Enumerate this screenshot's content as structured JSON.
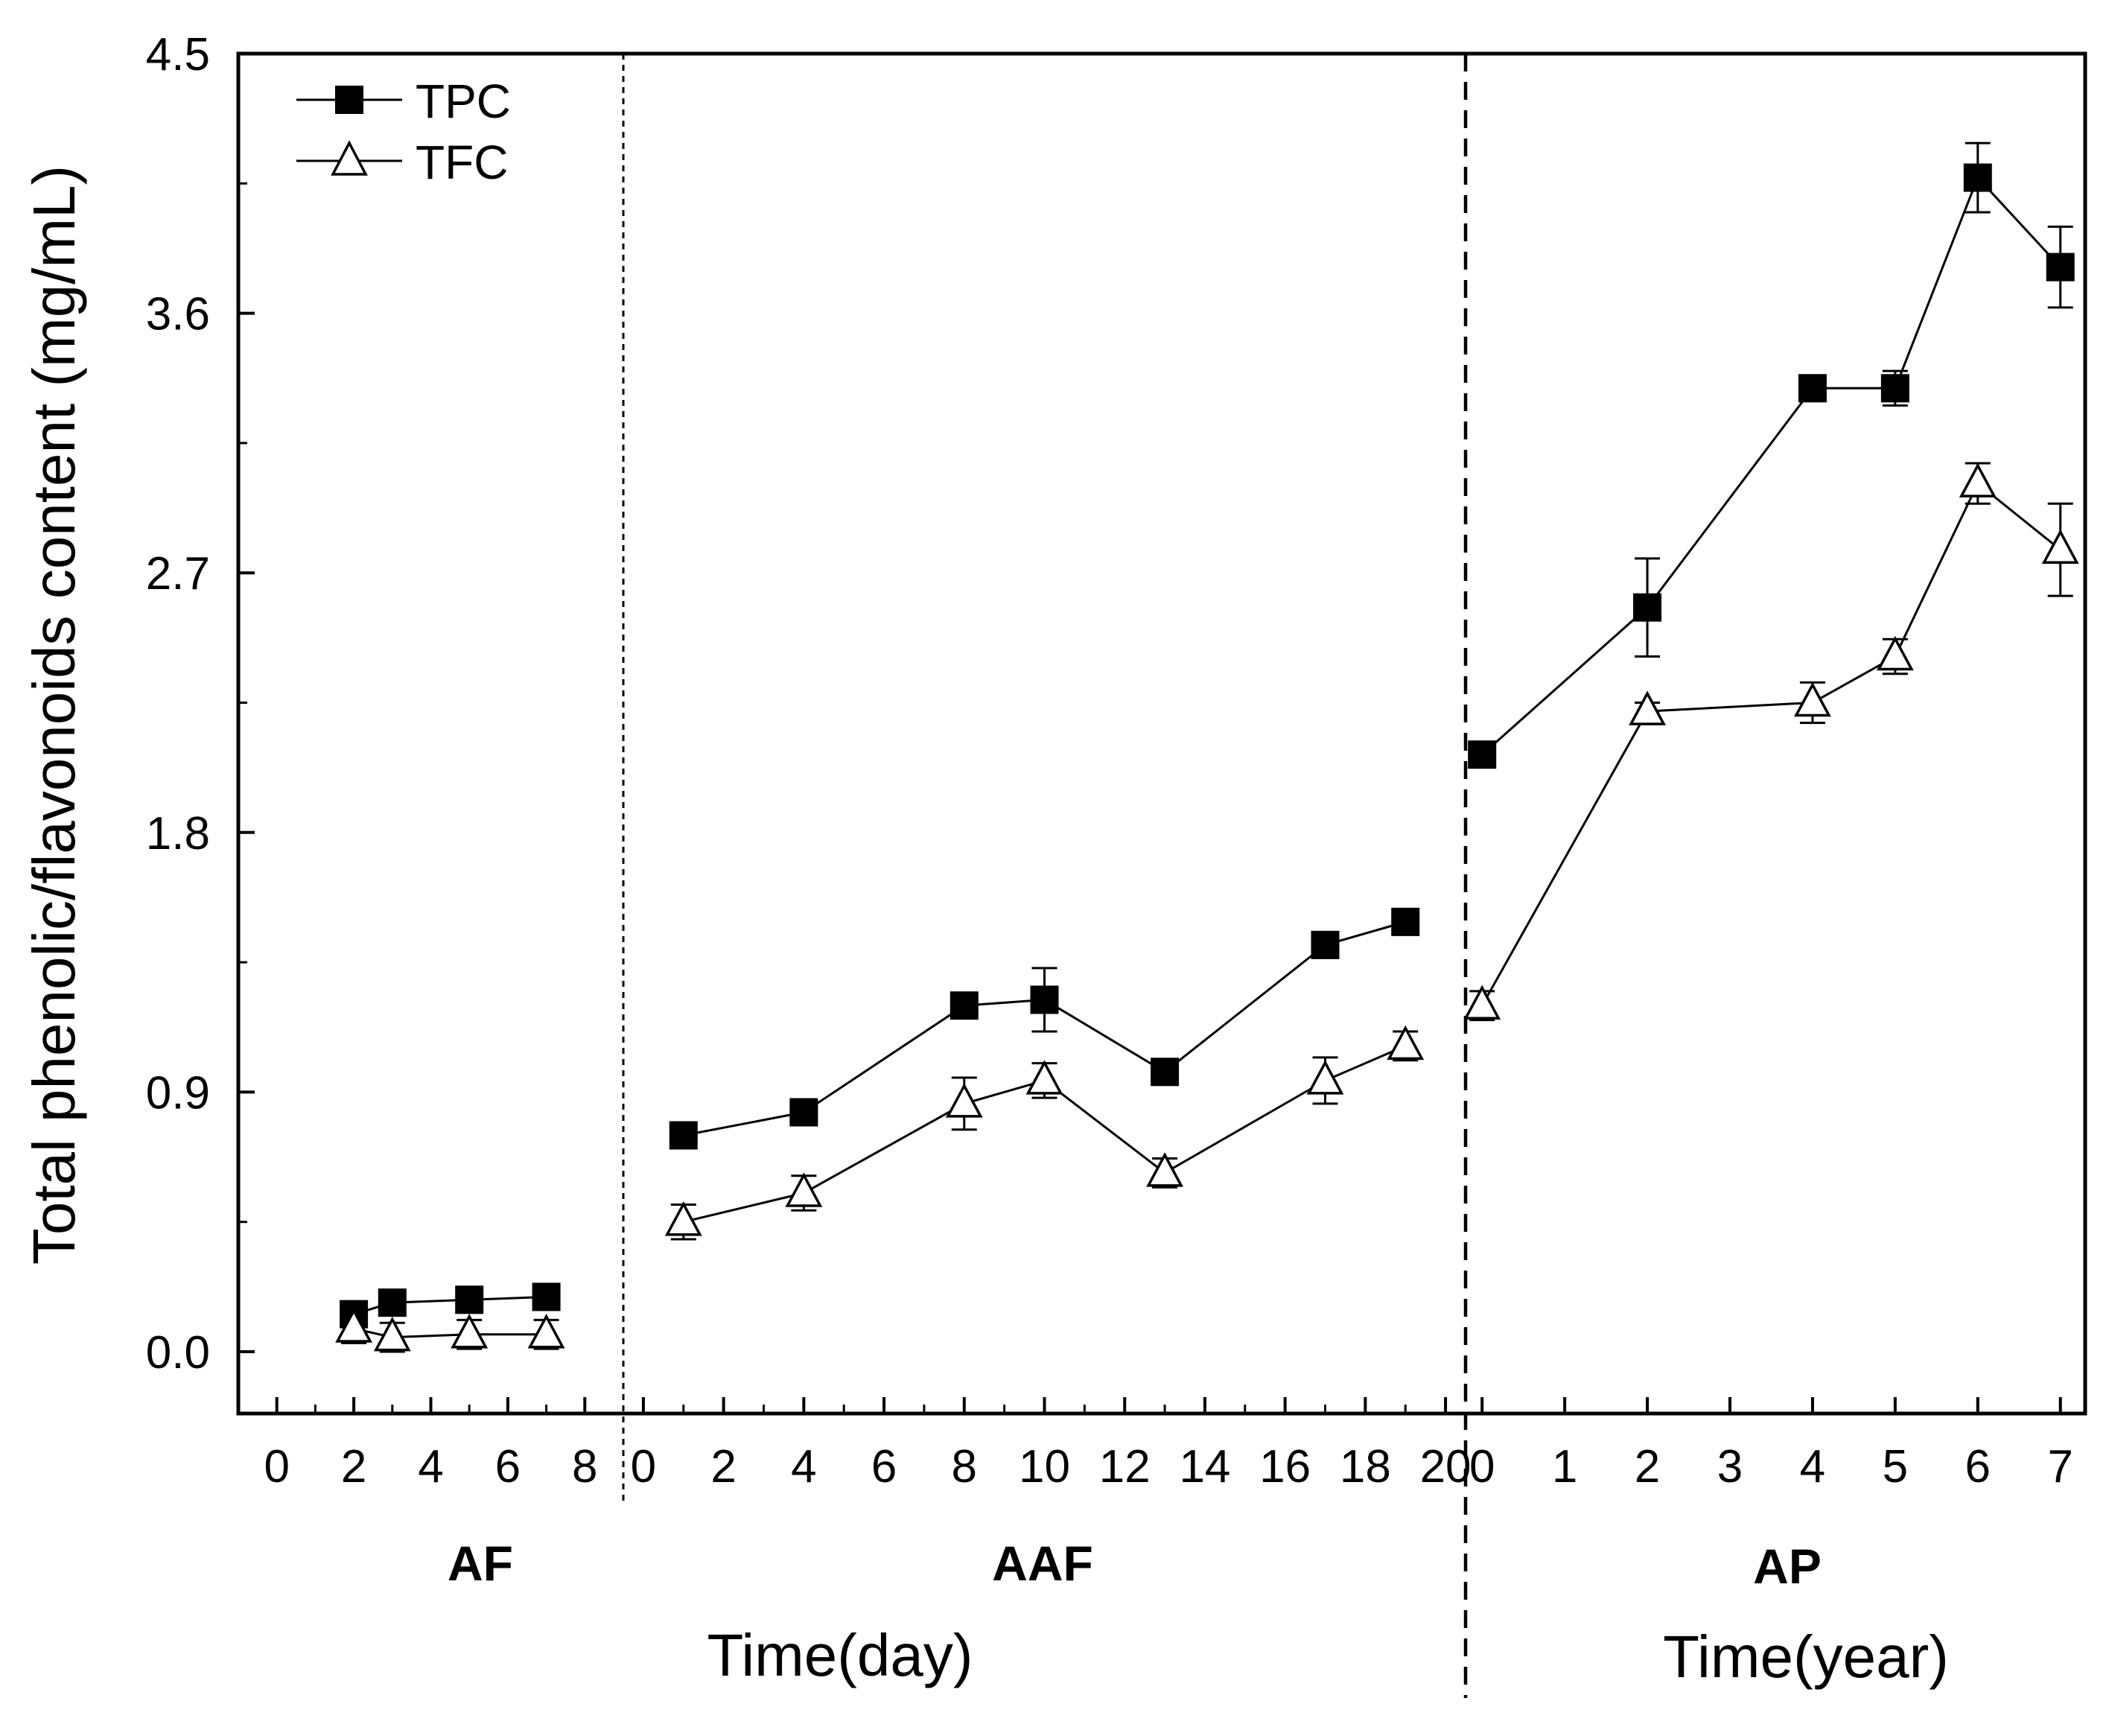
{
  "chart_data": {
    "type": "line",
    "ylabel": "Total phenolic/flavonoids content (mg/mL)",
    "ylim": [
      0,
      4.5
    ],
    "yticks": [
      "0.0",
      "0.9",
      "1.8",
      "2.7",
      "3.6",
      "4.5"
    ],
    "legend": {
      "placement": "top-left",
      "entries": [
        "TPC",
        "TFC"
      ]
    },
    "grid": false,
    "panels": [
      {
        "label": "AF",
        "xlim": [
          -1,
          9
        ],
        "xticks": [
          0,
          2,
          4,
          6,
          8
        ],
        "series": [
          {
            "name": "TPC",
            "marker": "filled-square",
            "x": [
              2,
              3,
              5,
              7
            ],
            "y": [
              0.13,
              0.17,
              0.18,
              0.19
            ],
            "err": [
              0.02,
              0.02,
              0.02,
              0.02
            ]
          },
          {
            "name": "TFC",
            "marker": "open-triangle",
            "x": [
              2,
              3,
              5,
              7
            ],
            "y": [
              0.08,
              0.05,
              0.06,
              0.06
            ],
            "err": [
              0.05,
              0.05,
              0.05,
              0.05
            ]
          }
        ]
      },
      {
        "label": "AAF",
        "xlim": [
          -0.5,
          20.5
        ],
        "xticks": [
          0,
          2,
          4,
          6,
          8,
          10,
          12,
          14,
          16,
          18,
          20
        ],
        "series": [
          {
            "name": "TPC",
            "marker": "filled-square",
            "x": [
              1,
              4,
              8,
              10,
              13,
              17,
              19
            ],
            "y": [
              0.75,
              0.83,
              1.2,
              1.22,
              0.97,
              1.41,
              1.49
            ],
            "err": [
              0.02,
              0.02,
              0.03,
              0.11,
              0.02,
              0.02,
              0.02
            ]
          },
          {
            "name": "TFC",
            "marker": "open-triangle",
            "x": [
              1,
              4,
              8,
              10,
              13,
              17,
              19
            ],
            "y": [
              0.45,
              0.55,
              0.86,
              0.94,
              0.62,
              0.94,
              1.06
            ],
            "err": [
              0.06,
              0.06,
              0.09,
              0.06,
              0.05,
              0.08,
              0.05
            ]
          }
        ]
      },
      {
        "label": "AP",
        "xlim": [
          -0.2,
          7.3
        ],
        "xticks": [
          0,
          1,
          2,
          3,
          4,
          5,
          6,
          7
        ],
        "series": [
          {
            "name": "TPC",
            "marker": "filled-square",
            "x": [
              0,
              2,
              4,
              5,
              6,
              7
            ],
            "y": [
              2.07,
              2.58,
              3.34,
              3.34,
              4.07,
              3.76
            ],
            "err": [
              0.02,
              0.17,
              0.03,
              0.06,
              0.12,
              0.14
            ]
          },
          {
            "name": "TFC",
            "marker": "open-triangle",
            "x": [
              0,
              2,
              4,
              5,
              6,
              7
            ],
            "y": [
              1.2,
              2.22,
              2.25,
              2.41,
              3.01,
              2.78
            ],
            "err": [
              0.05,
              0.03,
              0.07,
              0.06,
              0.07,
              0.16
            ]
          }
        ]
      }
    ],
    "xlabels": [
      {
        "text": "Time(day)",
        "panels": [
          "AF",
          "AAF"
        ]
      },
      {
        "text": "Time(year)",
        "panels": [
          "AP"
        ]
      }
    ]
  }
}
